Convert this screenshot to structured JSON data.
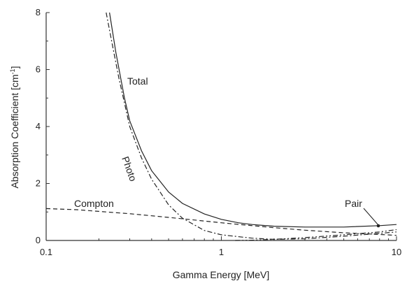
{
  "chart_data": {
    "type": "line",
    "title": "",
    "xlabel": "Gamma Energy [MeV]",
    "ylabel_main": "Absorption Coefficient [cm",
    "ylabel_sup": "-1",
    "ylabel_close": "]",
    "xscale": "log",
    "xlim": [
      0.1,
      10
    ],
    "ylim": [
      0,
      8
    ],
    "x_ticks": [
      0.1,
      1,
      10
    ],
    "x_tick_labels": [
      "0.1",
      "1",
      "10"
    ],
    "y_ticks": [
      0,
      2,
      4,
      6,
      8
    ],
    "y_tick_labels": [
      "0",
      "2",
      "4",
      "6",
      "8"
    ],
    "grid": false,
    "legend": "none",
    "series": [
      {
        "name": "Total",
        "style": "solid",
        "x": [
          0.23,
          0.25,
          0.28,
          0.3,
          0.35,
          0.4,
          0.5,
          0.6,
          0.8,
          1.0,
          1.25,
          1.5,
          2.0,
          3.0,
          5.0,
          8.0,
          10.0
        ],
        "y": [
          8.0,
          6.6,
          5.0,
          4.2,
          3.15,
          2.45,
          1.7,
          1.3,
          0.93,
          0.74,
          0.62,
          0.56,
          0.5,
          0.47,
          0.47,
          0.52,
          0.56
        ]
      },
      {
        "name": "Photo",
        "style": "dashdot",
        "x": [
          0.22,
          0.24,
          0.26,
          0.3,
          0.35,
          0.4,
          0.5,
          0.6,
          0.8,
          1.0,
          1.5,
          2.0,
          3.0,
          5.0,
          8.0,
          10.0
        ],
        "y": [
          8.0,
          6.8,
          5.7,
          4.0,
          2.9,
          2.15,
          1.25,
          0.78,
          0.35,
          0.2,
          0.08,
          0.04,
          0.06,
          0.15,
          0.25,
          0.3
        ]
      },
      {
        "name": "Compton",
        "style": "dashed",
        "x": [
          0.1,
          0.15,
          0.2,
          0.3,
          0.5,
          0.7,
          1.0,
          1.5,
          2.0,
          3.0,
          5.0,
          8.0,
          10.0
        ],
        "y": [
          1.12,
          1.08,
          1.02,
          0.94,
          0.81,
          0.72,
          0.62,
          0.52,
          0.45,
          0.36,
          0.27,
          0.21,
          0.18
        ]
      },
      {
        "name": "Pair",
        "style": "dashdotdot",
        "x": [
          1.2,
          1.5,
          2.0,
          3.0,
          5.0,
          8.0,
          10.0
        ],
        "y": [
          0.0,
          0.01,
          0.04,
          0.1,
          0.2,
          0.3,
          0.38
        ]
      }
    ],
    "annotations": {
      "total": "Total",
      "photo": "Photo",
      "compton": "Compton",
      "pair": "Pair"
    }
  }
}
